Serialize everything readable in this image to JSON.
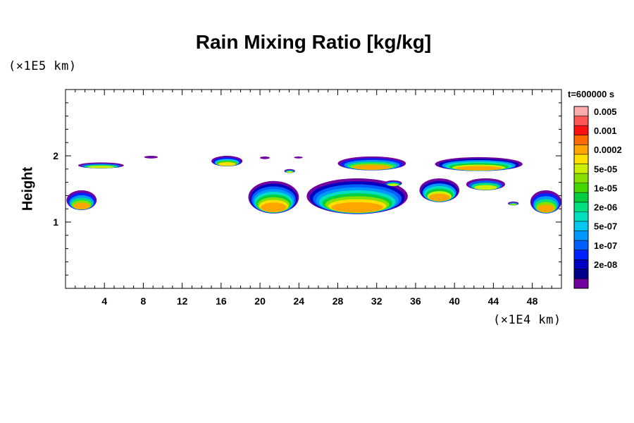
{
  "chart_data": {
    "type": "heatmap",
    "title": "Rain Mixing Ratio [kg/kg]",
    "ylabel": "Height",
    "xlabel": "",
    "x_scale_label": "(×1E4 km)",
    "y_scale_label": "(×1E5 km)",
    "time_label": "t=600000 s",
    "xlim": [
      0,
      51
    ],
    "ylim": [
      0,
      3
    ],
    "x_ticks": [
      4,
      8,
      12,
      16,
      20,
      24,
      28,
      32,
      36,
      40,
      44,
      48
    ],
    "y_ticks": [
      1,
      2
    ],
    "colorbar": {
      "labels": [
        "0.005",
        "0.001",
        "0.0002",
        "5e-05",
        "1e-05",
        "2e-06",
        "5e-07",
        "1e-07",
        "2e-08"
      ],
      "levels": [
        {
          "color": "#ffaaaa",
          "label": "0.005"
        },
        {
          "color": "#ff5555",
          "label": ""
        },
        {
          "color": "#ff1010",
          "label": "0.001"
        },
        {
          "color": "#ff6a00",
          "label": ""
        },
        {
          "color": "#ffa500",
          "label": "0.0002"
        },
        {
          "color": "#ffe000",
          "label": ""
        },
        {
          "color": "#ccf000",
          "label": "5e-05"
        },
        {
          "color": "#88e000",
          "label": ""
        },
        {
          "color": "#44d800",
          "label": "1e-05"
        },
        {
          "color": "#00d040",
          "label": ""
        },
        {
          "color": "#00e080",
          "label": "2e-06"
        },
        {
          "color": "#00e0c0",
          "label": ""
        },
        {
          "color": "#00c8f0",
          "label": "5e-07"
        },
        {
          "color": "#0098ff",
          "label": ""
        },
        {
          "color": "#0060ff",
          "label": "1e-07"
        },
        {
          "color": "#0020ff",
          "label": ""
        },
        {
          "color": "#0000c0",
          "label": "2e-08"
        },
        {
          "color": "#00008a",
          "label": ""
        },
        {
          "color": "#7000a0",
          "label": ""
        }
      ]
    },
    "regions": [
      {
        "x": [
          1.3,
          6.0
        ],
        "y": [
          1.81,
          1.9
        ],
        "peak": 4
      },
      {
        "x": [
          8.1,
          9.5
        ],
        "y": [
          1.96,
          2.0
        ],
        "peak": 1
      },
      {
        "x": [
          15.0,
          18.2
        ],
        "y": [
          1.84,
          2.0
        ],
        "peak": 5
      },
      {
        "x": [
          20.0,
          21.0
        ],
        "y": [
          1.95,
          1.99
        ],
        "peak": 1
      },
      {
        "x": [
          23.5,
          24.4
        ],
        "y": [
          1.96,
          1.99
        ],
        "peak": 1
      },
      {
        "x": [
          22.5,
          23.6
        ],
        "y": [
          1.74,
          1.8
        ],
        "peak": 4
      },
      {
        "x": [
          0.1,
          3.2
        ],
        "y": [
          1.18,
          1.48
        ],
        "peak": 6
      },
      {
        "x": [
          18.8,
          24.0
        ],
        "y": [
          1.13,
          1.62
        ],
        "peak": 9
      },
      {
        "x": [
          24.8,
          35.2
        ],
        "y": [
          1.12,
          1.66
        ],
        "peak": 9
      },
      {
        "x": [
          28.0,
          35.0
        ],
        "y": [
          1.78,
          1.99
        ],
        "peak": 6
      },
      {
        "x": [
          32.8,
          34.6
        ],
        "y": [
          1.54,
          1.63
        ],
        "peak": 4
      },
      {
        "x": [
          36.4,
          40.5
        ],
        "y": [
          1.3,
          1.66
        ],
        "peak": 7
      },
      {
        "x": [
          38.0,
          47.0
        ],
        "y": [
          1.77,
          1.98
        ],
        "peak": 7
      },
      {
        "x": [
          41.2,
          45.2
        ],
        "y": [
          1.48,
          1.66
        ],
        "peak": 4
      },
      {
        "x": [
          45.5,
          46.6
        ],
        "y": [
          1.25,
          1.31
        ],
        "peak": 3
      },
      {
        "x": [
          47.8,
          51.0
        ],
        "y": [
          1.13,
          1.48
        ],
        "peak": 6
      }
    ]
  }
}
